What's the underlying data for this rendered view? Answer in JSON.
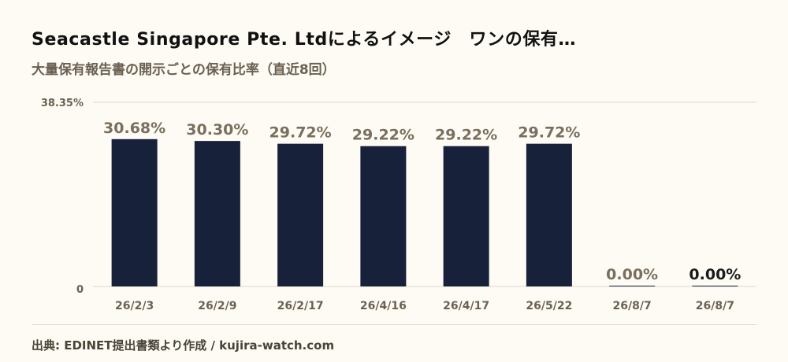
{
  "header": {
    "title": "Seacastle Singapore Pte. Ltdによるイメージ　ワンの保有…",
    "subtitle": "大量保有報告書の開示ごとの保有比率（直近8回）"
  },
  "footer": {
    "source": "出典: EDINET提出書類より作成 / kujira-watch.com"
  },
  "colors": {
    "bar": "#18213a",
    "value_label": "#7a6f5e",
    "value_label_last": "#1b1b1b",
    "grid": "#ddd8c8",
    "axis_text": "#6b6152"
  },
  "chart_data": {
    "type": "bar",
    "title": "大量保有報告書の開示ごとの保有比率（直近8回）",
    "categories": [
      "26/2/3",
      "26/2/9",
      "26/2/17",
      "26/4/16",
      "26/4/17",
      "26/5/22",
      "26/8/7",
      "26/8/7"
    ],
    "values": [
      30.68,
      30.3,
      29.72,
      29.22,
      29.22,
      29.72,
      0.0,
      0.0
    ],
    "value_labels": [
      "30.68%",
      "30.30%",
      "29.72%",
      "29.22%",
      "29.22%",
      "29.72%",
      "0.00%",
      "0.00%"
    ],
    "ylim": [
      0,
      38.35
    ],
    "y_tick_labels": [
      "0",
      "38.35%"
    ],
    "grid": true,
    "legend": "none"
  }
}
